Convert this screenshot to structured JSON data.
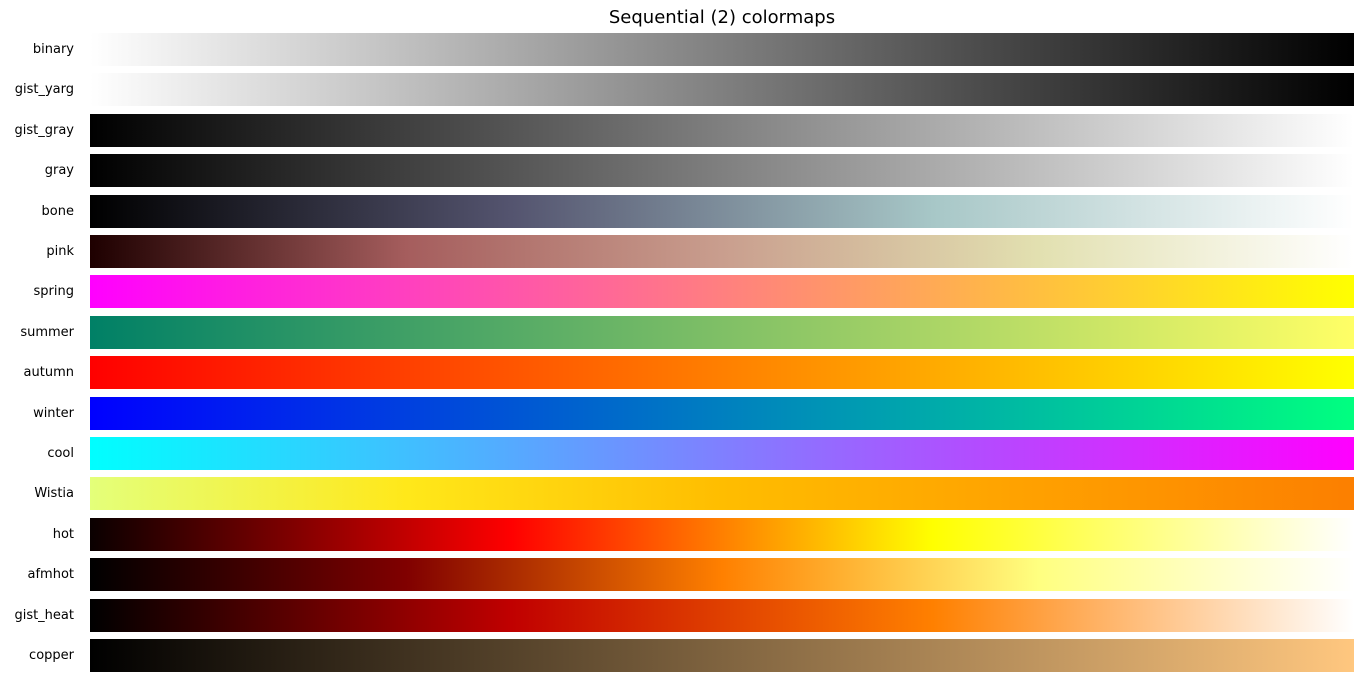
{
  "title": "Sequential (2) colormaps",
  "chart_data": {
    "type": "colormap-strips",
    "title": "Sequential (2) colormaps",
    "colormaps": [
      {
        "name": "binary",
        "stops": [
          "#ffffff",
          "#000000"
        ]
      },
      {
        "name": "gist_yarg",
        "stops": [
          "#ffffff",
          "#000000"
        ]
      },
      {
        "name": "gist_gray",
        "stops": [
          "#000000",
          "#ffffff"
        ]
      },
      {
        "name": "gray",
        "stops": [
          "#000000",
          "#ffffff"
        ]
      },
      {
        "name": "bone",
        "stops": [
          "#000000",
          "#54546f",
          "#a7c7c7",
          "#ffffff"
        ]
      },
      {
        "name": "pink",
        "stops": [
          "#1e0000",
          "#a55d5d",
          "#c99e8e",
          "#e2e0b0",
          "#ffffff"
        ]
      },
      {
        "name": "spring",
        "stops": [
          "#ff00ff",
          "#ffff00"
        ]
      },
      {
        "name": "summer",
        "stops": [
          "#008066",
          "#ffff66"
        ]
      },
      {
        "name": "autumn",
        "stops": [
          "#ff0000",
          "#ffff00"
        ]
      },
      {
        "name": "winter",
        "stops": [
          "#0000ff",
          "#00ff80"
        ]
      },
      {
        "name": "cool",
        "stops": [
          "#00ffff",
          "#ff00ff"
        ]
      },
      {
        "name": "Wistia",
        "stops": [
          "#e4ff7a",
          "#ffe81a",
          "#ffbd00",
          "#ffa000",
          "#fc7f00"
        ]
      },
      {
        "name": "hot",
        "stops": [
          "#0a0000",
          "#ff0000",
          "#ffff00",
          "#ffffff"
        ]
      },
      {
        "name": "afmhot",
        "stops": [
          "#000000",
          "#800000",
          "#ff8000",
          "#ffff80",
          "#ffffff"
        ]
      },
      {
        "name": "gist_heat",
        "stops": [
          "#000000",
          "#c00000",
          "#ff8000",
          "#ffffff"
        ]
      },
      {
        "name": "copper",
        "stops": [
          "#000000",
          "#ffc77f"
        ]
      }
    ]
  }
}
